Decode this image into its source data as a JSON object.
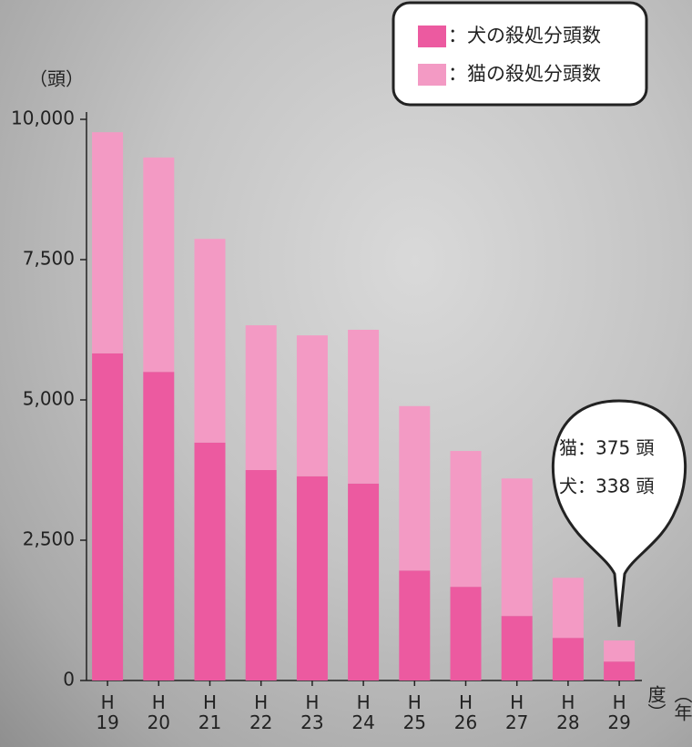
{
  "chart_data": {
    "type": "stacked-bar",
    "y_label": "（頭）",
    "x_label": "（年度）",
    "categories": [
      "H 19",
      "H 20",
      "H 21",
      "H 22",
      "H 23",
      "H 24",
      "H 25",
      "H 26",
      "H 27",
      "H 28",
      "H 29"
    ],
    "series": [
      {
        "name": "：犬の殺処分頭数",
        "color": "#ec5aa0",
        "values": [
          5830,
          5500,
          4240,
          3750,
          3640,
          3510,
          1960,
          1670,
          1150,
          760,
          338
        ]
      },
      {
        "name": "：猫の殺処分頭数",
        "color": "#f39ac4",
        "values": [
          3940,
          3820,
          3630,
          2580,
          2510,
          2740,
          2930,
          2420,
          2450,
          1070,
          375
        ]
      }
    ],
    "ylim": [
      0,
      10000
    ],
    "yticks": [
      0,
      {
        "value": 2500,
        "label": "2,500"
      },
      {
        "value": 5000,
        "label": "5,000"
      },
      {
        "value": 7500,
        "label": "7,500"
      },
      {
        "value": 10000,
        "label": "10,000"
      }
    ],
    "annotations": [
      "猫：375 頭",
      "犬：338 頭"
    ]
  }
}
